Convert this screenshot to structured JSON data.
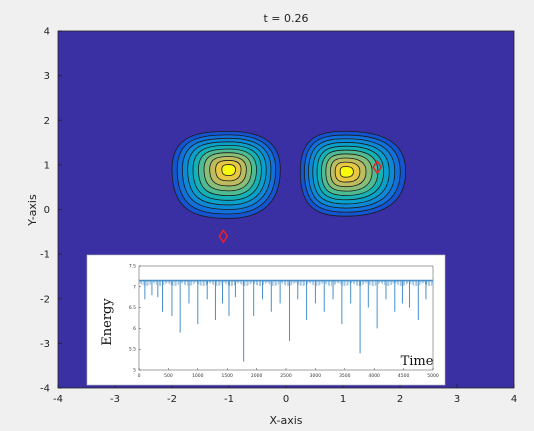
{
  "chart_data": [
    {
      "type": "contour",
      "title": "t = 0.26",
      "xlabel": "X-axis",
      "ylabel": "Y-axis",
      "xlim": [
        -4,
        4
      ],
      "ylim": [
        -4,
        4
      ],
      "xticks": [
        "-4",
        "-3",
        "-2",
        "-1",
        "0",
        "1",
        "2",
        "3",
        "4"
      ],
      "yticks": [
        "4",
        "3",
        "2",
        "1",
        "0",
        "-1",
        "-2",
        "-3",
        "-4"
      ],
      "colormap": "parula",
      "background_color": "#3a2fa3",
      "blobs": [
        {
          "center": [
            -1.0,
            0.9
          ],
          "extent_x": [
            -2.0,
            -0.1
          ],
          "extent_y": [
            -0.2,
            1.75
          ]
        },
        {
          "center": [
            1.05,
            0.85
          ],
          "extent_x": [
            0.25,
            2.1
          ],
          "extent_y": [
            -0.15,
            1.75
          ]
        }
      ],
      "contour_levels": 10,
      "markers": [
        {
          "shape": "diamond",
          "color": "#e8202a",
          "x": -1.1,
          "y": -0.6
        },
        {
          "shape": "diamond",
          "color": "#e8202a",
          "x": 1.6,
          "y": 0.95
        }
      ]
    },
    {
      "type": "line",
      "xlabel": "Time",
      "ylabel": "Energy",
      "xlim": [
        0,
        5000
      ],
      "ylim": [
        5,
        7.5
      ],
      "xticks": [
        "0",
        "500",
        "1000",
        "1500",
        "2000",
        "2500",
        "3000",
        "3500",
        "4000",
        "4500",
        "5000"
      ],
      "yticks": [
        "7.5",
        "7",
        "6.5",
        "6",
        "5.5",
        "5"
      ],
      "baseline": 7.15,
      "series_color": "#4a90c8",
      "dips": [
        {
          "x": 100,
          "y": 6.7
        },
        {
          "x": 220,
          "y": 6.8
        },
        {
          "x": 320,
          "y": 6.75
        },
        {
          "x": 400,
          "y": 6.4
        },
        {
          "x": 560,
          "y": 6.3
        },
        {
          "x": 700,
          "y": 5.9
        },
        {
          "x": 850,
          "y": 6.6
        },
        {
          "x": 1000,
          "y": 6.1
        },
        {
          "x": 1160,
          "y": 6.7
        },
        {
          "x": 1300,
          "y": 6.2
        },
        {
          "x": 1420,
          "y": 6.6
        },
        {
          "x": 1530,
          "y": 6.3
        },
        {
          "x": 1640,
          "y": 6.75
        },
        {
          "x": 1780,
          "y": 5.2
        },
        {
          "x": 1950,
          "y": 6.3
        },
        {
          "x": 2100,
          "y": 6.7
        },
        {
          "x": 2250,
          "y": 6.4
        },
        {
          "x": 2400,
          "y": 6.6
        },
        {
          "x": 2560,
          "y": 5.7
        },
        {
          "x": 2700,
          "y": 6.7
        },
        {
          "x": 2850,
          "y": 6.2
        },
        {
          "x": 3000,
          "y": 6.6
        },
        {
          "x": 3150,
          "y": 6.4
        },
        {
          "x": 3300,
          "y": 6.7
        },
        {
          "x": 3450,
          "y": 6.1
        },
        {
          "x": 3600,
          "y": 6.6
        },
        {
          "x": 3760,
          "y": 5.4
        },
        {
          "x": 3900,
          "y": 6.5
        },
        {
          "x": 4050,
          "y": 6.0
        },
        {
          "x": 4200,
          "y": 6.7
        },
        {
          "x": 4350,
          "y": 6.4
        },
        {
          "x": 4480,
          "y": 6.6
        },
        {
          "x": 4600,
          "y": 6.5
        },
        {
          "x": 4750,
          "y": 6.2
        },
        {
          "x": 4880,
          "y": 6.7
        }
      ]
    }
  ]
}
